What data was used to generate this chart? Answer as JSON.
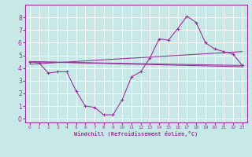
{
  "background_color": "#c8e8e8",
  "line_color": "#993399",
  "xlabel": "Windchill (Refroidissement éolien,°C)",
  "ylim": [
    -0.3,
    9.0
  ],
  "xlim": [
    -0.5,
    23.5
  ],
  "yticks": [
    0,
    1,
    2,
    3,
    4,
    5,
    6,
    7,
    8
  ],
  "xticks": [
    0,
    1,
    2,
    3,
    4,
    5,
    6,
    7,
    8,
    9,
    10,
    11,
    12,
    13,
    14,
    15,
    16,
    17,
    18,
    19,
    20,
    21,
    22,
    23
  ],
  "series": [
    {
      "x": [
        0,
        1,
        2,
        3,
        4,
        5,
        6,
        7,
        8,
        9,
        10,
        11,
        12,
        13,
        14,
        15,
        16,
        17,
        18,
        19,
        20,
        21,
        22,
        23
      ],
      "y": [
        4.5,
        4.4,
        3.6,
        3.7,
        3.7,
        2.2,
        1.0,
        0.9,
        0.3,
        0.3,
        1.5,
        3.3,
        3.7,
        4.8,
        6.3,
        6.2,
        7.1,
        8.1,
        7.6,
        6.0,
        5.5,
        5.3,
        5.1,
        4.2
      ],
      "marker": true
    },
    {
      "x": [
        0,
        23
      ],
      "y": [
        4.5,
        4.2
      ],
      "marker": false
    },
    {
      "x": [
        0,
        23
      ],
      "y": [
        4.3,
        5.3
      ],
      "marker": false
    },
    {
      "x": [
        0,
        23
      ],
      "y": [
        4.5,
        4.1
      ],
      "marker": false
    }
  ]
}
